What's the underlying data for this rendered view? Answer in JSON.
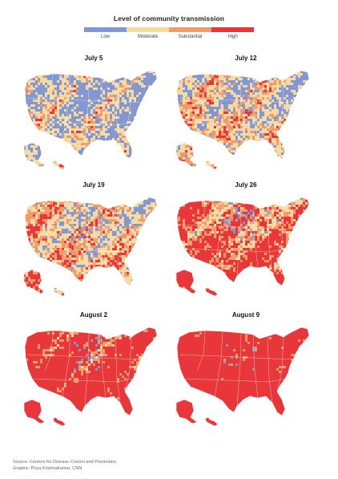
{
  "legend": {
    "title": "Level of community transmission",
    "items": [
      {
        "label": "Low",
        "color": "#8397d0"
      },
      {
        "label": "Moderate",
        "color": "#f7d9a4"
      },
      {
        "label": "Substantial",
        "color": "#f29b6a"
      },
      {
        "label": "High",
        "color": "#e8373a"
      }
    ]
  },
  "maps": [
    {
      "title": "July 5",
      "high_share": 0.22
    },
    {
      "title": "July 12",
      "high_share": 0.32
    },
    {
      "title": "July 19",
      "high_share": 0.38
    },
    {
      "title": "July 26",
      "high_share": 0.55
    },
    {
      "title": "August 2",
      "high_share": 0.72
    },
    {
      "title": "August 9",
      "high_share": 0.85
    }
  ],
  "source": {
    "line1": "Source: Centers for Disease Control and Prevention",
    "line2": "Graphic: Priya Krishnakumar, CNN"
  }
}
